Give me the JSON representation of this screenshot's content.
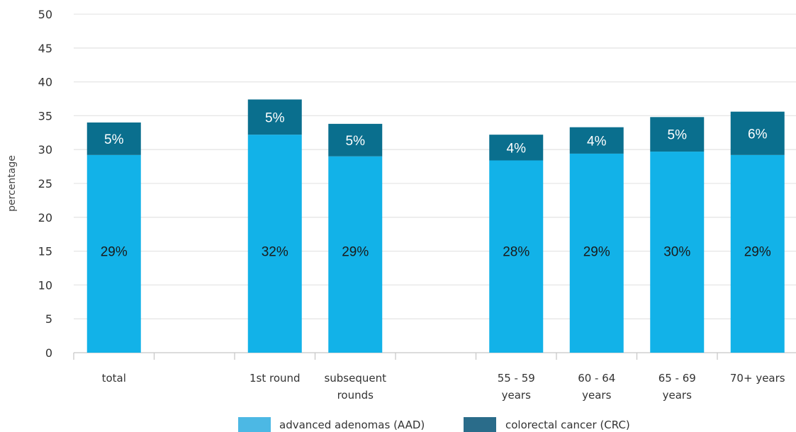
{
  "chart_data": {
    "type": "bar",
    "stacked": true,
    "ylabel": "percentage",
    "ylim": [
      0,
      50
    ],
    "yticks": [
      0,
      5,
      10,
      15,
      20,
      25,
      30,
      35,
      40,
      45,
      50
    ],
    "grid": true,
    "legend_position": "bottom",
    "slots": [
      {
        "lines": [
          "total"
        ]
      },
      {
        "lines": []
      },
      {
        "lines": [
          "1st round"
        ]
      },
      {
        "lines": [
          "subsequent",
          "rounds"
        ]
      },
      {
        "lines": []
      },
      {
        "lines": [
          "55 - 59",
          "years"
        ]
      },
      {
        "lines": [
          "60 - 64",
          "years"
        ]
      },
      {
        "lines": [
          "65 - 69",
          "years"
        ]
      },
      {
        "lines": [
          "70+ years"
        ]
      }
    ],
    "series": [
      {
        "name": "advanced adenomas (AAD)",
        "color": "#12b2e8",
        "label_color": "#1a1a1a",
        "values": [
          29.2,
          null,
          32.2,
          29.0,
          null,
          28.4,
          29.4,
          29.7,
          29.2
        ],
        "labels": [
          "29%",
          "",
          "32%",
          "29%",
          "",
          "28%",
          "29%",
          "30%",
          "29%"
        ]
      },
      {
        "name": "colorectal cancer (CRC)",
        "color": "#0a6f8e",
        "label_color": "#ffffff",
        "values": [
          4.8,
          null,
          5.2,
          4.8,
          null,
          3.8,
          3.9,
          5.1,
          6.4
        ],
        "labels": [
          "5%",
          "",
          "5%",
          "5%",
          "",
          "4%",
          "4%",
          "5%",
          "6%"
        ]
      }
    ],
    "legend_colors": [
      "#4cb8e4",
      "#2a6c8a"
    ]
  }
}
